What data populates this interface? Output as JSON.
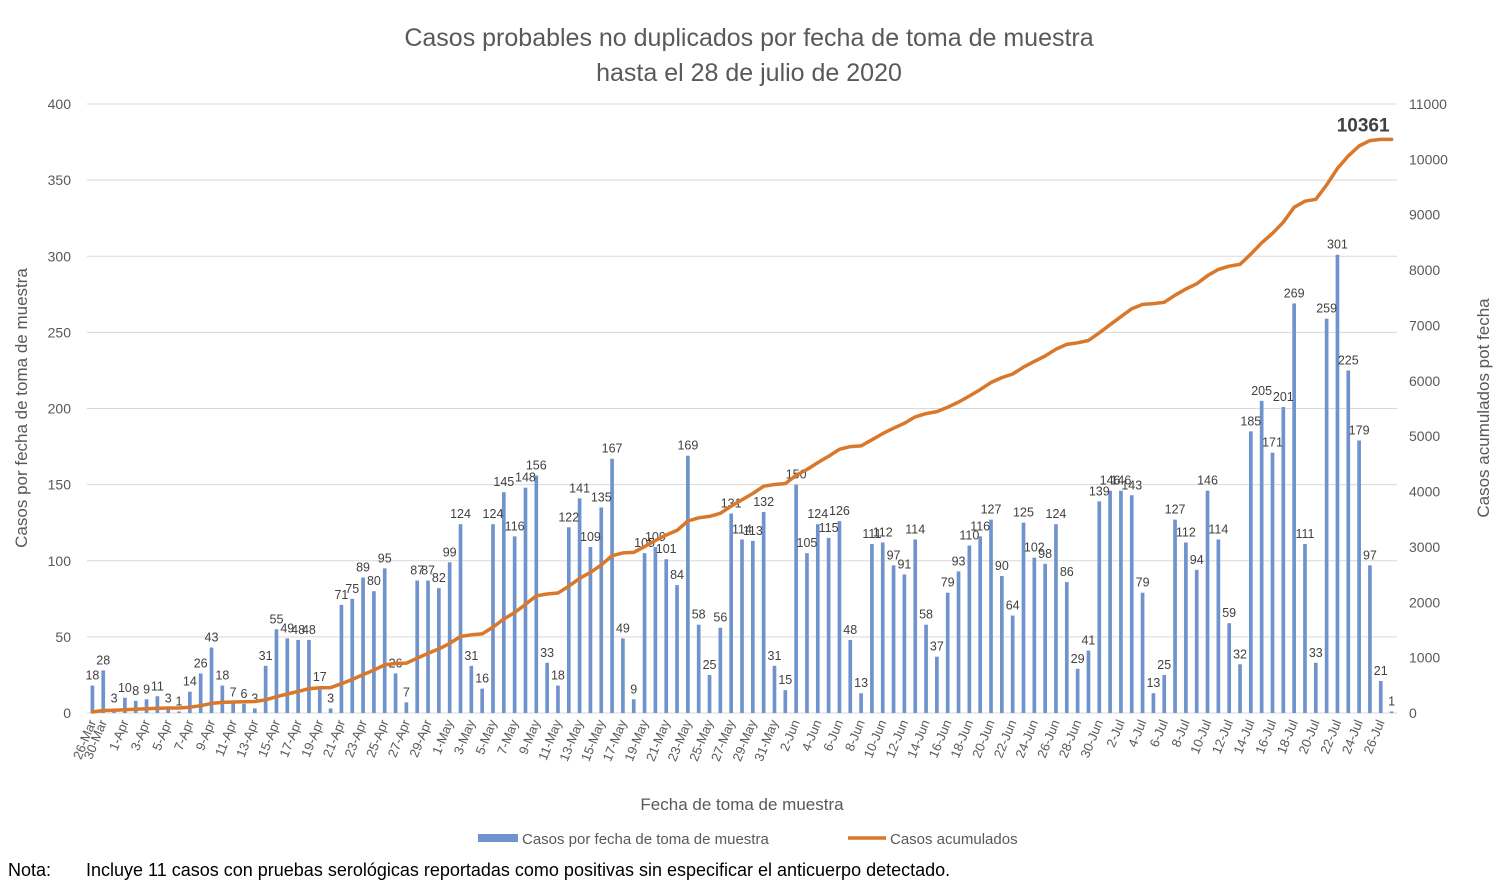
{
  "chart_data": {
    "type": "bar",
    "title": [
      "Casos probables no duplicados por fecha de toma de muestra",
      "hasta el  28 de julio de 2020"
    ],
    "xlabel": "Fecha de toma de muestra",
    "ylabel": "Casos por fecha de toma de muestra",
    "y2label": "Casos acumulados pot fecha",
    "ylim": [
      0,
      400
    ],
    "y2lim": [
      0,
      11000
    ],
    "yticks": [
      0,
      50,
      100,
      150,
      200,
      250,
      300,
      350,
      400
    ],
    "y2ticks": [
      0,
      1000,
      2000,
      3000,
      4000,
      5000,
      6000,
      7000,
      8000,
      9000,
      10000,
      11000
    ],
    "grid": true,
    "legend_position": "bottom",
    "colors": {
      "bars": "#6f93cd",
      "line": "#d9782b",
      "grid": "#d9d9d9"
    },
    "series": [
      {
        "name": "Casos por fecha de toma de muestra",
        "type": "bar",
        "values": [
          18,
          28,
          3,
          10,
          8,
          9,
          11,
          3,
          1,
          14,
          26,
          43,
          18,
          7,
          6,
          3,
          31,
          55,
          49,
          48,
          48,
          17,
          3,
          71,
          75,
          89,
          80,
          95,
          26,
          7,
          87,
          87,
          82,
          99,
          124,
          31,
          16,
          124,
          145,
          116,
          148,
          156,
          33,
          18,
          122,
          141,
          109,
          135,
          167,
          49,
          9,
          105,
          109,
          101,
          84,
          169,
          58,
          25,
          56,
          131,
          114,
          113,
          132,
          31,
          15,
          150,
          105,
          124,
          115,
          126,
          48,
          13,
          111,
          112,
          97,
          91,
          114,
          58,
          37,
          79,
          93,
          110,
          116,
          127,
          90,
          64,
          125,
          102,
          98,
          124,
          86,
          29,
          41,
          139,
          146,
          146,
          143,
          79,
          13,
          25,
          127,
          112,
          94,
          146,
          114,
          59,
          32,
          185,
          205,
          171,
          201,
          269,
          111,
          33,
          259,
          301,
          225,
          179,
          97,
          21,
          1
        ]
      },
      {
        "name": "Casos acumulados",
        "type": "line",
        "axis": "right",
        "final_label": "10361"
      }
    ],
    "x_tick_labels": [
      "26-Mar",
      "30-Mar",
      "1-Apr",
      "3-Apr",
      "5-Apr",
      "7-Apr",
      "9-Apr",
      "11-Apr",
      "13-Apr",
      "15-Apr",
      "17-Apr",
      "19-Apr",
      "21-Apr",
      "23-Apr",
      "25-Apr",
      "27-Apr",
      "29-Apr",
      "1-May",
      "3-May",
      "5-May",
      "7-May",
      "9-May",
      "11-May",
      "13-May",
      "15-May",
      "17-May",
      "19-May",
      "21-May",
      "23-May",
      "25-May",
      "27-May",
      "29-May",
      "31-May",
      "2-Jun",
      "4-Jun",
      "6-Jun",
      "8-Jun",
      "10-Jun",
      "12-Jun",
      "14-Jun",
      "16-Jun",
      "18-Jun",
      "20-Jun",
      "22-Jun",
      "24-Jun",
      "26-Jun",
      "28-Jun",
      "30-Jun",
      "2-Jul",
      "4-Jul",
      "6-Jul",
      "8-Jul",
      "10-Jul",
      "12-Jul",
      "14-Jul",
      "16-Jul",
      "18-Jul",
      "20-Jul",
      "22-Jul",
      "24-Jul",
      "26-Jul"
    ],
    "x_tick_bar_index": [
      0,
      1,
      3,
      5,
      7,
      9,
      11,
      13,
      15,
      17,
      19,
      21,
      23,
      25,
      27,
      29,
      31,
      33,
      35,
      37,
      39,
      41,
      43,
      45,
      47,
      49,
      51,
      53,
      55,
      57,
      59,
      61,
      63,
      65,
      67,
      69,
      71,
      73,
      75,
      77,
      79,
      81,
      83,
      85,
      87,
      89,
      91,
      93,
      95,
      97,
      99,
      101,
      103,
      105,
      107,
      109,
      111,
      113,
      115,
      117,
      119
    ]
  },
  "note": {
    "label": "Nota:",
    "text": "Incluye 11 casos con pruebas serológicas reportadas como positivas sin especificar el anticuerpo detectado."
  }
}
